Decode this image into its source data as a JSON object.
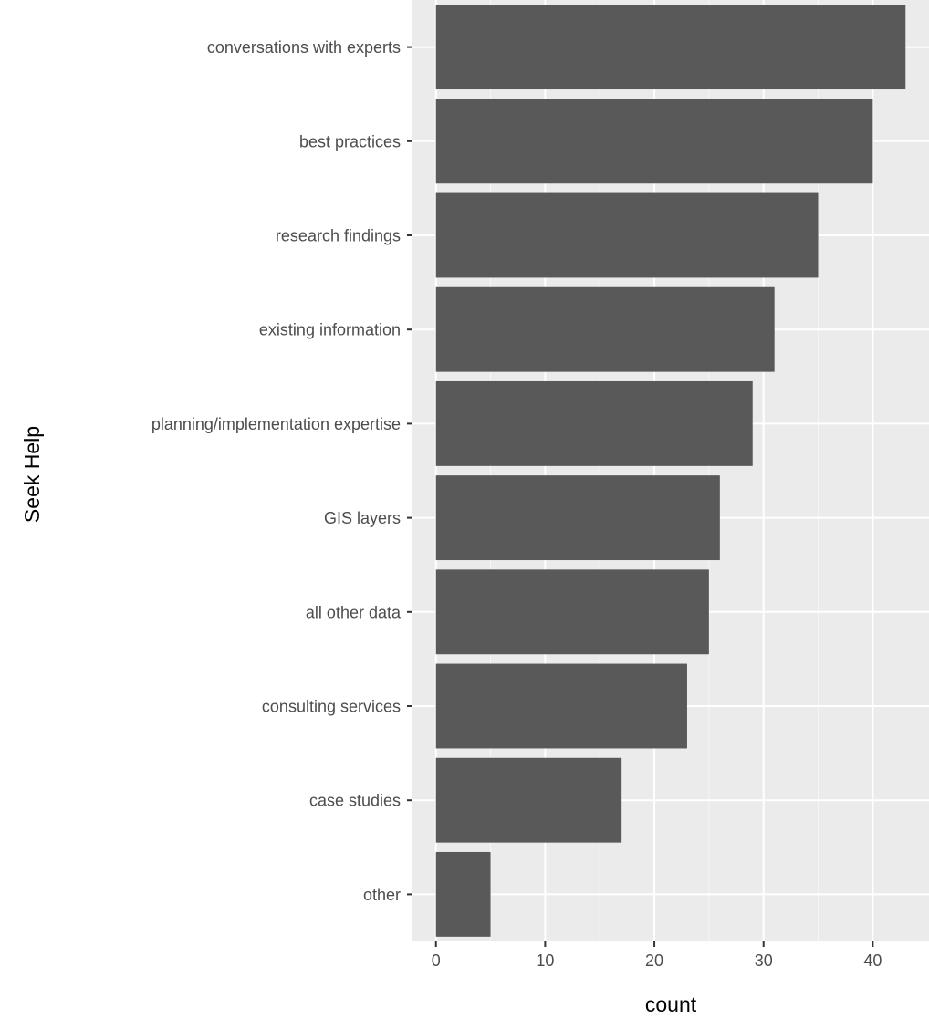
{
  "chart_data": {
    "type": "bar",
    "orientation": "horizontal",
    "title": "",
    "xlabel": "count",
    "ylabel": "Seek Help",
    "categories": [
      "conversations with experts",
      "best practices",
      "research findings",
      "existing information",
      "planning/implementation expertise",
      "GIS layers",
      "all other data",
      "consulting services",
      "case studies",
      "other"
    ],
    "values": [
      43,
      40,
      35,
      31,
      29,
      26,
      25,
      23,
      17,
      5
    ],
    "xlim": [
      -2.15,
      45.15
    ],
    "x_ticks": [
      0,
      10,
      20,
      30,
      40
    ],
    "grid": true,
    "legend": "none",
    "colors": {
      "bar": "#595959",
      "panel_background": "#ebebeb",
      "grid_major": "#ffffff",
      "tick_label": "#4d4d4d",
      "axis_title": "#000000"
    }
  }
}
